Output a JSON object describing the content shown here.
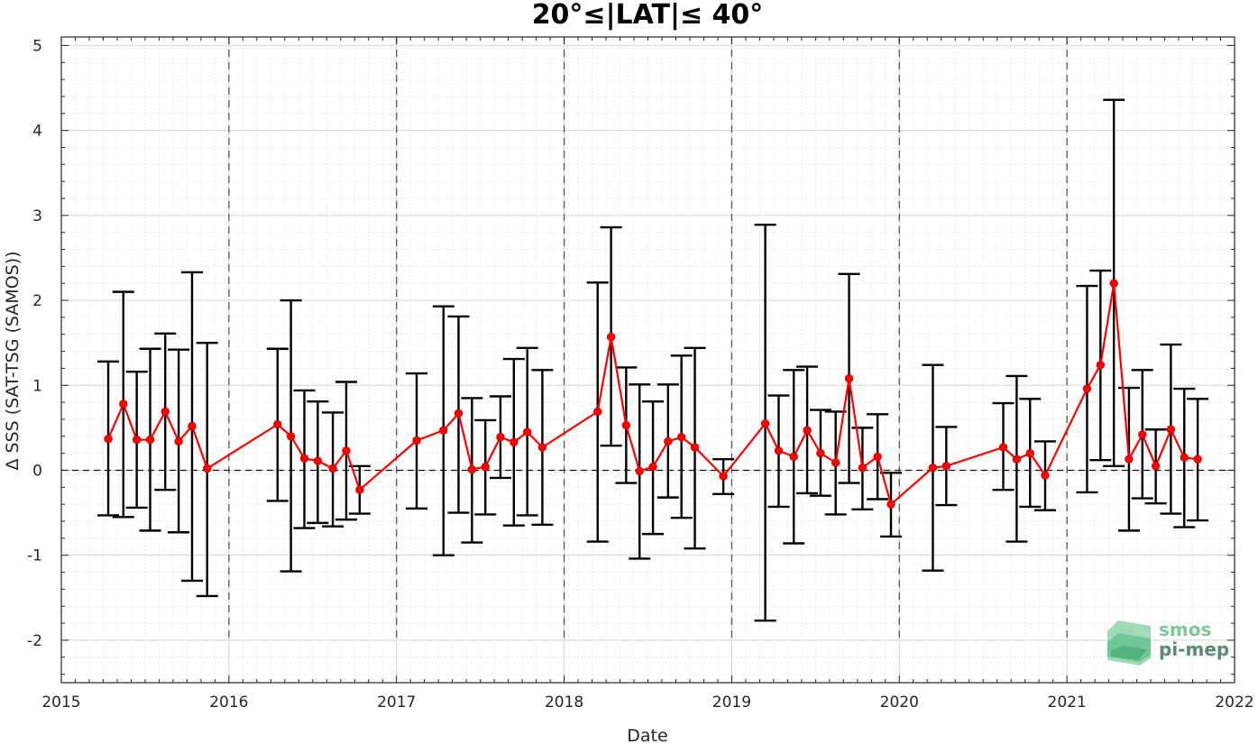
{
  "chart_data": {
    "type": "line",
    "title": "20°≤|LAT|≤ 40°",
    "xlabel": "Date",
    "ylabel": "Δ SSS (SAT-TSG (SAMOS))",
    "xlim": [
      2015,
      2022
    ],
    "ylim": [
      -2.5,
      5.1
    ],
    "x_ticks": [
      2015,
      2016,
      2017,
      2018,
      2019,
      2020,
      2021,
      2022
    ],
    "x_tick_labels": [
      "2015",
      "2016",
      "2017",
      "2018",
      "2019",
      "2020",
      "2021",
      "2022"
    ],
    "y_ticks": [
      -2,
      -1,
      0,
      1,
      2,
      3,
      4,
      5
    ],
    "y_tick_labels": [
      "-2",
      "-1",
      "0",
      "1",
      "2",
      "3",
      "4",
      "5"
    ],
    "grid": true,
    "year_divider_lines": [
      2016,
      2017,
      2018,
      2019,
      2020,
      2021
    ],
    "zero_line": 0,
    "colors": {
      "series": "#ff0000",
      "error_bars": "#000000",
      "grid": "#d0d0d0",
      "dividers": "#555555",
      "logo_green": "#4caf7a",
      "logo_dark": "#5a8a6f"
    },
    "series": [
      {
        "x": [
          2015.28,
          2015.37,
          2015.45,
          2015.53,
          2015.62,
          2015.7,
          2015.78,
          2015.87,
          2016.29,
          2016.37,
          2016.45,
          2016.53,
          2016.62,
          2016.7,
          2016.78,
          2017.12,
          2017.28,
          2017.37,
          2017.45,
          2017.53,
          2017.62,
          2017.7,
          2017.78,
          2017.87,
          2018.2,
          2018.28,
          2018.37,
          2018.45,
          2018.53,
          2018.62,
          2018.7,
          2018.78,
          2018.95,
          2019.2,
          2019.28,
          2019.37,
          2019.45,
          2019.53,
          2019.62,
          2019.7,
          2019.78,
          2019.87,
          2019.95,
          2020.2,
          2020.28,
          2020.62,
          2020.7,
          2020.78,
          2020.87,
          2021.12,
          2021.2,
          2021.28,
          2021.37,
          2021.45,
          2021.53,
          2021.62,
          2021.7,
          2021.78
        ],
        "values": [
          0.37,
          0.78,
          0.36,
          0.36,
          0.69,
          0.34,
          0.52,
          0.02,
          0.54,
          0.4,
          0.14,
          0.11,
          0.02,
          0.23,
          -0.23,
          0.35,
          0.47,
          0.67,
          0.01,
          0.04,
          0.39,
          0.33,
          0.45,
          0.27,
          0.69,
          1.57,
          0.53,
          -0.01,
          0.04,
          0.34,
          0.39,
          0.27,
          -0.07,
          0.55,
          0.23,
          0.16,
          0.47,
          0.2,
          0.09,
          1.08,
          0.03,
          0.16,
          -0.4,
          0.03,
          0.05,
          0.27,
          0.13,
          0.2,
          -0.06,
          0.96,
          1.24,
          2.2,
          0.13,
          0.42,
          0.05,
          0.48,
          0.15,
          0.13
        ],
        "error_low": [
          -0.53,
          -0.55,
          -0.44,
          -0.71,
          -0.23,
          -0.73,
          -1.3,
          -1.48,
          -0.36,
          -1.19,
          -0.68,
          -0.62,
          -0.66,
          -0.58,
          -0.51,
          -0.45,
          -1.0,
          -0.5,
          -0.85,
          -0.52,
          -0.09,
          -0.65,
          -0.53,
          -0.64,
          -0.84,
          0.29,
          -0.15,
          -1.04,
          -0.75,
          -0.32,
          -0.56,
          -0.92,
          -0.28,
          -1.77,
          -0.43,
          -0.86,
          -0.27,
          -0.3,
          -0.52,
          -0.15,
          -0.46,
          -0.34,
          -0.78,
          -1.18,
          -0.41,
          -0.23,
          -0.84,
          -0.43,
          -0.47,
          -0.26,
          0.12,
          0.05,
          -0.71,
          -0.33,
          -0.39,
          -0.51,
          -0.67,
          -0.59
        ],
        "error_high": [
          1.28,
          2.1,
          1.16,
          1.43,
          1.61,
          1.42,
          2.33,
          1.5,
          1.43,
          2.0,
          0.94,
          0.81,
          0.68,
          1.04,
          0.05,
          1.14,
          1.93,
          1.81,
          0.85,
          0.59,
          0.87,
          1.31,
          1.44,
          1.18,
          2.21,
          2.86,
          1.21,
          1.01,
          0.81,
          1.01,
          1.35,
          1.44,
          0.13,
          2.89,
          0.88,
          1.18,
          1.22,
          0.71,
          0.69,
          2.31,
          0.5,
          0.66,
          -0.03,
          1.24,
          0.51,
          0.79,
          1.11,
          0.84,
          0.34,
          2.17,
          2.35,
          4.36,
          0.97,
          1.18,
          0.48,
          1.48,
          0.96,
          0.84
        ]
      }
    ]
  },
  "logo": {
    "line1": "smos",
    "line2": "pi-mep"
  }
}
